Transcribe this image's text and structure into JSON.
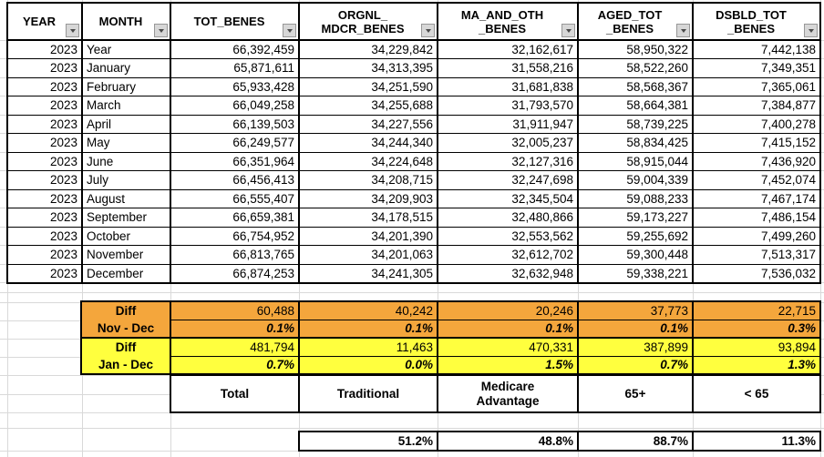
{
  "table": {
    "headers": [
      {
        "key": "year",
        "label": "YEAR"
      },
      {
        "key": "month",
        "label": "MONTH"
      },
      {
        "key": "tot-benes",
        "label": "TOT_BENES"
      },
      {
        "key": "orgnl-mdcr-benes",
        "label": "ORGNL_\nMDCR_BENES"
      },
      {
        "key": "ma-and-oth-benes",
        "label": "MA_AND_OTH\n_BENES"
      },
      {
        "key": "aged-tot-benes",
        "label": "AGED_TOT\n_BENES"
      },
      {
        "key": "dsbld-tot-benes",
        "label": "DSBLD_TOT\n_BENES"
      }
    ],
    "rows": [
      [
        "2023",
        "Year",
        "66,392,459",
        "34,229,842",
        "32,162,617",
        "58,950,322",
        "7,442,138"
      ],
      [
        "2023",
        "January",
        "65,871,611",
        "34,313,395",
        "31,558,216",
        "58,522,260",
        "7,349,351"
      ],
      [
        "2023",
        "February",
        "65,933,428",
        "34,251,590",
        "31,681,838",
        "58,568,367",
        "7,365,061"
      ],
      [
        "2023",
        "March",
        "66,049,258",
        "34,255,688",
        "31,793,570",
        "58,664,381",
        "7,384,877"
      ],
      [
        "2023",
        "April",
        "66,139,503",
        "34,227,556",
        "31,911,947",
        "58,739,225",
        "7,400,278"
      ],
      [
        "2023",
        "May",
        "66,249,577",
        "34,244,340",
        "32,005,237",
        "58,834,425",
        "7,415,152"
      ],
      [
        "2023",
        "June",
        "66,351,964",
        "34,224,648",
        "32,127,316",
        "58,915,044",
        "7,436,920"
      ],
      [
        "2023",
        "July",
        "66,456,413",
        "34,208,715",
        "32,247,698",
        "59,004,339",
        "7,452,074"
      ],
      [
        "2023",
        "August",
        "66,555,407",
        "34,209,903",
        "32,345,504",
        "59,088,233",
        "7,467,174"
      ],
      [
        "2023",
        "September",
        "66,659,381",
        "34,178,515",
        "32,480,866",
        "59,173,227",
        "7,486,154"
      ],
      [
        "2023",
        "October",
        "66,754,952",
        "34,201,390",
        "32,553,562",
        "59,255,692",
        "7,499,260"
      ],
      [
        "2023",
        "November",
        "66,813,765",
        "34,201,063",
        "32,612,702",
        "59,300,448",
        "7,513,317"
      ],
      [
        "2023",
        "December",
        "66,874,253",
        "34,241,305",
        "32,632,948",
        "59,338,221",
        "7,536,032"
      ]
    ]
  },
  "summary": {
    "nov_dec": {
      "title": "Diff",
      "range": "Nov - Dec",
      "diffs": [
        "60,488",
        "40,242",
        "20,246",
        "37,773",
        "22,715"
      ],
      "pcts": [
        "0.1%",
        "0.1%",
        "0.1%",
        "0.1%",
        "0.3%"
      ]
    },
    "jan_dec": {
      "title": "Diff",
      "range": "Jan - Dec",
      "diffs": [
        "481,794",
        "11,463",
        "470,331",
        "387,899",
        "93,894"
      ],
      "pcts": [
        "0.7%",
        "0.0%",
        "1.5%",
        "0.7%",
        "1.3%"
      ]
    },
    "colors": {
      "nov_dec": "#f4a63c",
      "jan_dec": "#ffff3e",
      "border": "#000000",
      "gridline": "#d9d9d9"
    }
  },
  "categories": [
    "Total",
    "Traditional",
    "Medicare\nAdvantage",
    "65+",
    "< 65"
  ],
  "shares": [
    "51.2%",
    "48.8%",
    "88.7%",
    "11.3%"
  ]
}
